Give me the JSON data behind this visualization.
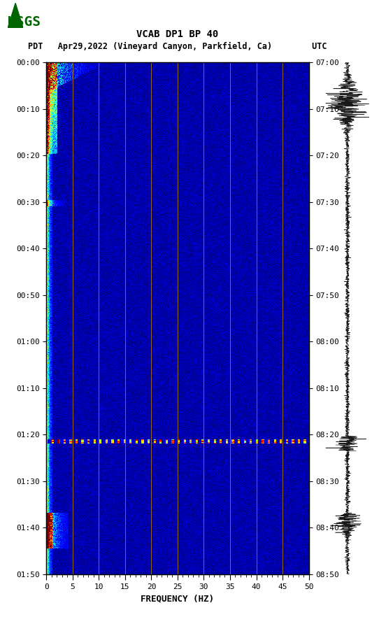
{
  "title_line1": "VCAB DP1 BP 40",
  "title_line2": "PDT   Apr29,2022 (Vineyard Canyon, Parkfield, Ca)        UTC",
  "xlabel": "FREQUENCY (HZ)",
  "freq_min": 0,
  "freq_max": 50,
  "time_start_left": "00:00",
  "time_end_left": "01:50",
  "time_start_right": "07:00",
  "time_end_right": "08:50",
  "freq_ticks": [
    0,
    5,
    10,
    15,
    20,
    25,
    30,
    35,
    40,
    45,
    50
  ],
  "left_time_ticks": [
    "00:00",
    "00:10",
    "00:20",
    "00:30",
    "00:40",
    "00:50",
    "01:00",
    "01:10",
    "01:20",
    "01:30",
    "01:40",
    "01:50"
  ],
  "right_time_ticks": [
    "07:00",
    "07:10",
    "07:20",
    "07:30",
    "07:40",
    "07:50",
    "08:00",
    "08:10",
    "08:20",
    "08:30",
    "08:40",
    "08:50"
  ],
  "vertical_grid_lines": [
    5,
    10,
    15,
    20,
    25,
    30,
    35,
    40,
    45
  ],
  "grid_color": "#b8860b",
  "background_color": "#ffffff",
  "spectrogram_bg": "#00008b",
  "colormap": "jet",
  "usgs_logo_color": "#006400",
  "n_time": 680,
  "n_freq": 350,
  "noise_seed": 42,
  "horizontal_line_time": 0.74,
  "horizontal_line_freq": 2.5,
  "earthquake1_time": 0.05,
  "earthquake1_duration": 0.2,
  "earthquake2_time": 0.73,
  "waveform_color": "#000000",
  "fig_width": 5.52,
  "fig_height": 8.92
}
